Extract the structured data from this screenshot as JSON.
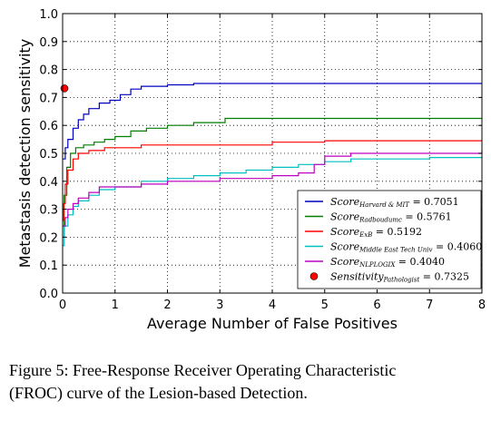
{
  "chart_data": {
    "type": "line",
    "xlabel": "Average Number of False Positives",
    "ylabel": "Metastasis detection sensitivity",
    "xlim": [
      0,
      8
    ],
    "ylim": [
      0,
      1
    ],
    "xticks": [
      "0",
      "1",
      "2",
      "3",
      "4",
      "5",
      "6",
      "7",
      "8"
    ],
    "yticks": [
      "0.0",
      "0.1",
      "0.2",
      "0.3",
      "0.4",
      "0.5",
      "0.6",
      "0.7",
      "0.8",
      "0.9",
      "1.0"
    ],
    "grid": true,
    "legend_position": "bottom-right",
    "series": [
      {
        "legend_base": "Score",
        "legend_sub": "Harvard & MIT",
        "legend_value": " = 0.7051",
        "color": "#0000bf",
        "x": [
          0,
          0.05,
          0.1,
          0.2,
          0.3,
          0.4,
          0.5,
          0.7,
          0.9,
          1.1,
          1.3,
          1.5,
          2.0,
          2.5,
          3.0,
          4.0,
          6.0,
          8.0
        ],
        "y": [
          0.48,
          0.52,
          0.55,
          0.59,
          0.62,
          0.64,
          0.66,
          0.68,
          0.69,
          0.71,
          0.73,
          0.74,
          0.745,
          0.75,
          0.75,
          0.75,
          0.75,
          0.75
        ]
      },
      {
        "legend_base": "Score",
        "legend_sub": "Radboudumc",
        "legend_value": " = 0.5761",
        "color": "#007f00",
        "x": [
          0,
          0.03,
          0.08,
          0.15,
          0.25,
          0.4,
          0.6,
          0.8,
          1.0,
          1.3,
          1.6,
          2.0,
          2.5,
          2.8,
          3.1,
          4.0,
          5.0,
          6.0,
          7.0,
          8.0
        ],
        "y": [
          0.2,
          0.35,
          0.45,
          0.5,
          0.52,
          0.53,
          0.54,
          0.55,
          0.56,
          0.58,
          0.59,
          0.6,
          0.61,
          0.61,
          0.625,
          0.625,
          0.625,
          0.625,
          0.625,
          0.625
        ]
      },
      {
        "legend_base": "Score",
        "legend_sub": "ExB",
        "legend_value": " = 0.5192",
        "color": "#ff0000",
        "x": [
          0,
          0.02,
          0.05,
          0.1,
          0.2,
          0.3,
          0.5,
          0.8,
          1.0,
          1.5,
          2.0,
          3.0,
          4.0,
          5.0,
          6.0,
          7.0,
          8.0
        ],
        "y": [
          0.26,
          0.32,
          0.39,
          0.44,
          0.48,
          0.5,
          0.51,
          0.52,
          0.52,
          0.53,
          0.53,
          0.53,
          0.54,
          0.545,
          0.545,
          0.545,
          0.545
        ]
      },
      {
        "legend_base": "Score",
        "legend_sub": "Middle East Tech Univ",
        "legend_value": " = 0.4060",
        "color": "#00bfbf",
        "x": [
          0,
          0.03,
          0.1,
          0.2,
          0.3,
          0.5,
          0.7,
          1.0,
          1.5,
          2.0,
          2.5,
          3.0,
          3.5,
          4.0,
          4.5,
          5.0,
          5.5,
          6.0,
          7.0,
          8.0
        ],
        "y": [
          0.17,
          0.24,
          0.28,
          0.31,
          0.33,
          0.35,
          0.37,
          0.38,
          0.4,
          0.41,
          0.42,
          0.43,
          0.44,
          0.45,
          0.46,
          0.47,
          0.48,
          0.48,
          0.485,
          0.49
        ]
      },
      {
        "legend_base": "Score",
        "legend_sub": "NLPLOGIX",
        "legend_value": " = 0.4040",
        "color": "#bf00bf",
        "x": [
          0,
          0.05,
          0.1,
          0.2,
          0.3,
          0.5,
          0.7,
          1.0,
          1.5,
          2.0,
          3.0,
          3.5,
          4.0,
          4.5,
          4.8,
          5.0,
          5.5,
          6.0,
          7.0,
          7.5,
          8.0
        ],
        "y": [
          0.24,
          0.27,
          0.3,
          0.32,
          0.34,
          0.36,
          0.38,
          0.38,
          0.39,
          0.4,
          0.41,
          0.41,
          0.42,
          0.43,
          0.46,
          0.49,
          0.5,
          0.5,
          0.5,
          0.5,
          0.51
        ]
      }
    ],
    "point": {
      "legend_base": "Sensitivity",
      "legend_sub": "Pathologist",
      "legend_value": " = 0.7325",
      "color": "#ff0000",
      "x": 0,
      "y": 0.7325
    }
  },
  "caption": {
    "line1": "Figure 5: Free-Response Receiver Operating Characteristic",
    "line2": "(FROC) curve of the Lesion-based Detection."
  }
}
